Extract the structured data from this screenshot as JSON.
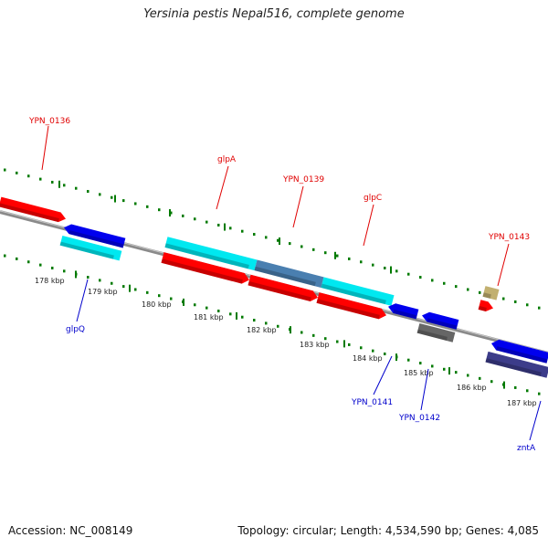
{
  "title": "Yersinia pestis Nepal516, complete genome",
  "footer": {
    "accession": "Accession: NC_008149",
    "summary": "Topology: circular; Length: 4,534,590 bp; Genes: 4,085"
  },
  "colors": {
    "backbone": "#808080",
    "forward_label": "#e00000",
    "reverse_label": "#0000cc",
    "tick_green": "#007a00",
    "red_feature": "#ff0000",
    "blue_feature": "#0000ee",
    "cyan_feature": "#00e8f0",
    "steel_feature": "#4a7fb0",
    "gray_feature": "#666666",
    "tan_feature": "#c2b070",
    "navy_feature": "#3c3c8a"
  },
  "kbp_ticks": [
    "178 kbp",
    "179 kbp",
    "180 kbp",
    "181 kbp",
    "182 kbp",
    "183 kbp",
    "184 kbp",
    "185 kbp",
    "186 kbp",
    "187 kbp"
  ],
  "gene_labels": [
    {
      "text": "YPN_0136",
      "strand": "forward"
    },
    {
      "text": "glpA",
      "strand": "forward"
    },
    {
      "text": "YPN_0139",
      "strand": "forward"
    },
    {
      "text": "glpC",
      "strand": "forward"
    },
    {
      "text": "YPN_0143",
      "strand": "forward"
    },
    {
      "text": "glpQ",
      "strand": "reverse"
    },
    {
      "text": "YPN_0141",
      "strand": "reverse"
    },
    {
      "text": "YPN_0142",
      "strand": "reverse"
    },
    {
      "text": "zntA",
      "strand": "reverse"
    }
  ],
  "features": [
    {
      "id": "YPN_0136",
      "color": "red_feature",
      "direction": "right"
    },
    {
      "id": "glpA-cds",
      "color": "red_feature",
      "direction": "right"
    },
    {
      "id": "YPN_0139-cds",
      "color": "red_feature",
      "direction": "right"
    },
    {
      "id": "glpC-cds",
      "color": "red_feature",
      "direction": "right"
    },
    {
      "id": "glpABC-operon-1",
      "color": "cyan_feature",
      "direction": "none"
    },
    {
      "id": "glpABC-operon-2",
      "color": "steel_feature",
      "direction": "none"
    },
    {
      "id": "glpABC-operon-3",
      "color": "cyan_feature",
      "direction": "none"
    },
    {
      "id": "glpQ-cds",
      "color": "blue_feature",
      "direction": "left"
    },
    {
      "id": "glpQ-gene",
      "color": "cyan_feature",
      "direction": "none"
    },
    {
      "id": "YPN_0141",
      "color": "blue_feature",
      "direction": "left"
    },
    {
      "id": "YPN_0142",
      "color": "blue_feature",
      "direction": "left"
    },
    {
      "id": "YPN_0142-gene",
      "color": "gray_feature",
      "direction": "none"
    },
    {
      "id": "YPN_0143-gene",
      "color": "tan_feature",
      "direction": "none"
    },
    {
      "id": "YPN_0143",
      "color": "red_feature",
      "direction": "right"
    },
    {
      "id": "zntA-cds",
      "color": "blue_feature",
      "direction": "left"
    },
    {
      "id": "zntA-gene",
      "color": "navy_feature",
      "direction": "none"
    }
  ]
}
